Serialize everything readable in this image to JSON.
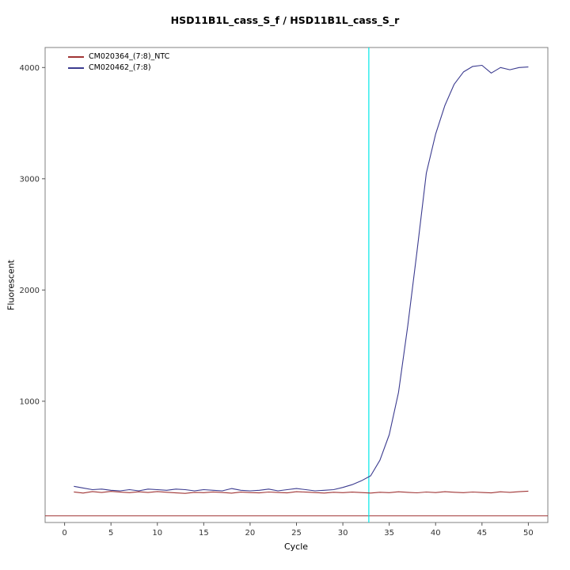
{
  "chart_data": {
    "type": "line",
    "title": "HSD11B1L_cass_S_f / HSD11B1L_cass_S_r",
    "xlabel": "Cycle",
    "ylabel": "Fluorescent",
    "xlim": [
      -2.1,
      52.1
    ],
    "ylim": [
      -90,
      4180
    ],
    "x_ticks": [
      0,
      5,
      10,
      15,
      20,
      25,
      30,
      35,
      40,
      45,
      50
    ],
    "y_ticks": [
      1000,
      2000,
      3000,
      4000
    ],
    "grid": false,
    "legend_position": "top-left",
    "x": [
      1,
      2,
      3,
      4,
      5,
      6,
      7,
      8,
      9,
      10,
      11,
      12,
      13,
      14,
      15,
      16,
      17,
      18,
      19,
      20,
      21,
      22,
      23,
      24,
      25,
      26,
      27,
      28,
      29,
      30,
      31,
      32,
      33,
      34,
      35,
      36,
      37,
      38,
      39,
      40,
      41,
      42,
      43,
      44,
      45,
      46,
      47,
      48,
      49,
      50
    ],
    "series": [
      {
        "name": "CM020364_(7:8)_NTC",
        "color": "#a03535",
        "values": [
          185,
          175,
          188,
          180,
          190,
          183,
          178,
          186,
          180,
          188,
          182,
          176,
          172,
          181,
          178,
          185,
          180,
          174,
          183,
          179,
          176,
          184,
          180,
          176,
          187,
          183,
          179,
          175,
          182,
          178,
          183,
          179,
          175,
          182,
          178,
          186,
          181,
          177,
          184,
          179,
          187,
          182,
          178,
          184,
          180,
          176,
          186,
          181,
          187,
          192
        ]
      },
      {
        "name": "CM020462_(7:8)",
        "color": "#3b3b8f",
        "values": [
          235,
          220,
          205,
          210,
          200,
          195,
          205,
          195,
          210,
          205,
          200,
          210,
          205,
          195,
          205,
          200,
          195,
          215,
          200,
          195,
          200,
          210,
          195,
          205,
          215,
          205,
          195,
          200,
          205,
          225,
          250,
          285,
          330,
          470,
          700,
          1080,
          1680,
          2350,
          3050,
          3400,
          3660,
          3850,
          3960,
          4010,
          4020,
          3950,
          4000,
          3980,
          4000,
          4005
        ]
      }
    ],
    "ct_line": {
      "x": 32.8,
      "color": "#00e8e8"
    },
    "baseline_line": {
      "y": -30,
      "color": "#a03535"
    }
  }
}
